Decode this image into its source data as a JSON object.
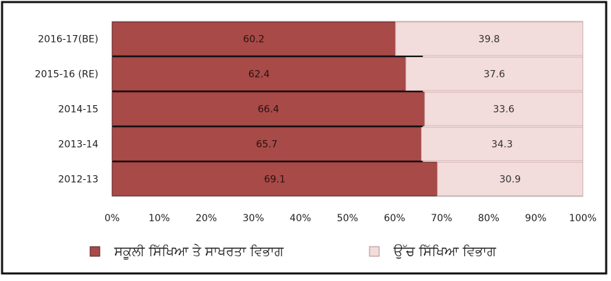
{
  "chart_data": {
    "type": "bar",
    "orientation": "horizontal",
    "stacked": true,
    "percent_axis": true,
    "categories": [
      "2016-17(BE)",
      "2015-16 (RE)",
      "2014-15",
      "2013-14",
      "2012-13"
    ],
    "series": [
      {
        "name": "ਸਕੂਲੀ ਸਿੱਖਿਆ ਤੇ ਸਾਖਰਤਾ ਵਿਭਾਗ",
        "color": "#a84a48",
        "values": [
          60.2,
          62.4,
          66.4,
          65.7,
          69.1
        ],
        "labels": [
          "60.2",
          "62.4",
          "66.4",
          "65.7",
          "69.1"
        ]
      },
      {
        "name": "ਉੱਚ ਸਿੱਖਿਆ ਵਿਭਾਗ",
        "color": "#f3dcdc",
        "values": [
          39.8,
          37.6,
          33.6,
          34.3,
          30.9
        ],
        "labels": [
          "39.8",
          "37.6",
          "33.6",
          "34.3",
          "30.9"
        ]
      }
    ],
    "xlim": [
      0,
      100
    ],
    "xticks": [
      "0%",
      "10%",
      "20%",
      "30%",
      "40%",
      "50%",
      "60%",
      "70%",
      "80%",
      "90%",
      "100%"
    ],
    "grid": false,
    "legend_position": "bottom"
  }
}
